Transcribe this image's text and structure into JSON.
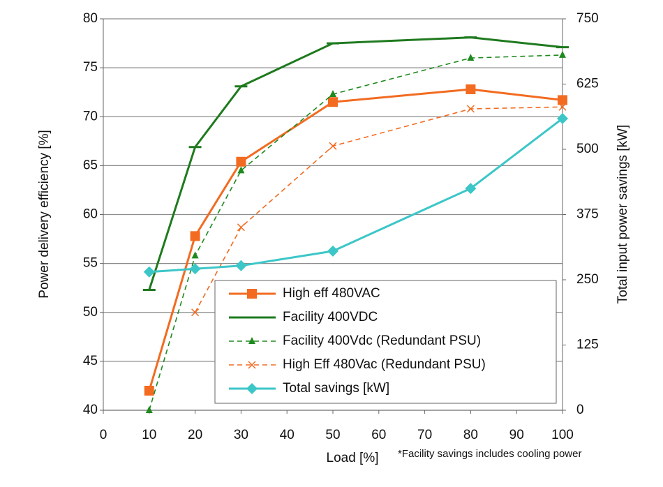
{
  "chart_data": {
    "type": "line",
    "x": [
      10,
      20,
      30,
      50,
      80,
      100
    ],
    "xlim": [
      0,
      100
    ],
    "xticks": [
      0,
      10,
      20,
      30,
      40,
      50,
      60,
      70,
      80,
      90,
      100
    ],
    "ylim": [
      40,
      80
    ],
    "yticks": [
      40,
      45,
      50,
      55,
      60,
      65,
      70,
      75,
      80
    ],
    "y2lim": [
      0,
      750
    ],
    "y2ticks": [
      0,
      125,
      250,
      375,
      500,
      625,
      750
    ],
    "xlabel": "Load [%]",
    "ylabel": "Power delivery efficiency [%]",
    "y2label": "Total input power savings [kW]",
    "note": "*Facility savings includes cooling power",
    "grid": true,
    "series": [
      {
        "name": "High eff 480VAC",
        "color": "#f26b21",
        "marker": "square",
        "dashed": false,
        "values": [
          42,
          57.8,
          65.4,
          71.5,
          72.8,
          71.7
        ]
      },
      {
        "name": "Facility 400VDC",
        "color": "#1e7a1e",
        "marker": "dash",
        "dashed": false,
        "values": [
          52.3,
          66.9,
          73.1,
          77.5,
          78.1,
          77.1
        ]
      },
      {
        "name": "Facility 400Vdc (Redundant PSU)",
        "color": "#1e8a1e",
        "marker": "triangle",
        "dashed": true,
        "values": [
          40,
          55.8,
          64.5,
          72.3,
          76.0,
          76.3
        ]
      },
      {
        "name": "High Eff 480Vac (Redundant PSU)",
        "color": "#f26b21",
        "marker": "cross",
        "dashed": true,
        "values": [
          null,
          50,
          58.7,
          67.0,
          70.8,
          71.0
        ]
      },
      {
        "name": "Total savings [kW]",
        "color": "#3cc6c8",
        "marker": "diamond",
        "dashed": false,
        "axis": "y2",
        "values": [
          265,
          271,
          277,
          305,
          425,
          559
        ]
      }
    ]
  }
}
